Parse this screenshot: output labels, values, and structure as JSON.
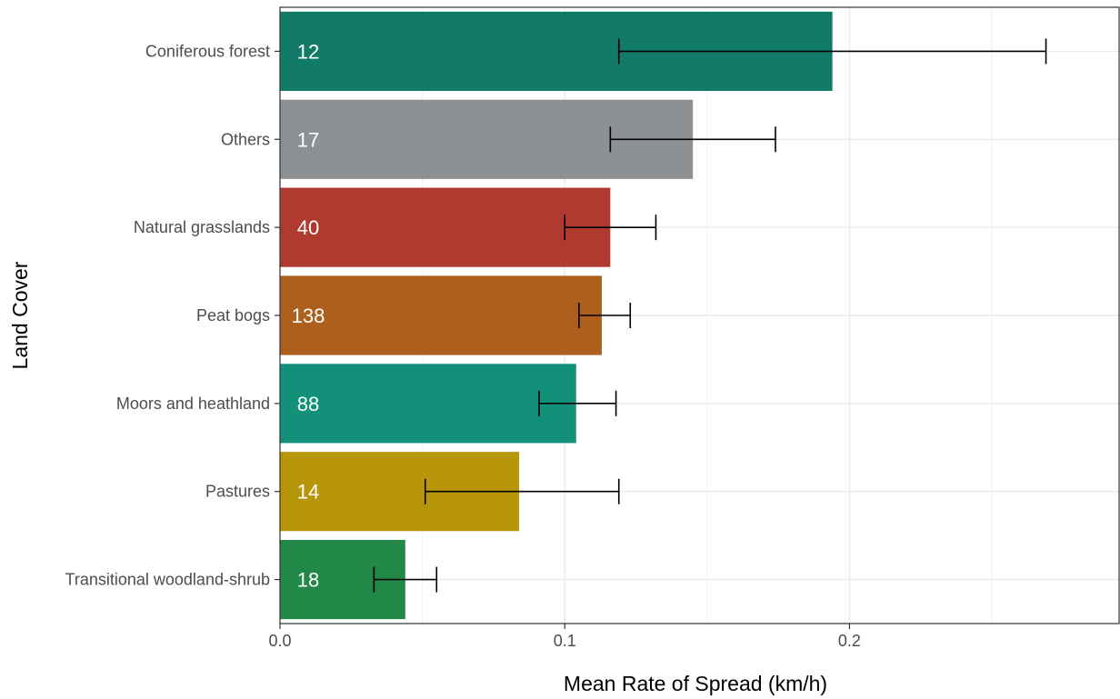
{
  "chart_data": {
    "type": "bar",
    "orientation": "horizontal",
    "xlabel": "Mean Rate of Spread (km/h)",
    "ylabel": "Land Cover",
    "xlim": [
      0,
      0.295
    ],
    "x_ticks": [
      "0.0",
      "0.1",
      "0.2"
    ],
    "x_tick_values": [
      0.0,
      0.1,
      0.2
    ],
    "grid": true,
    "categories": [
      "Coniferous forest",
      "Others",
      "Natural grasslands",
      "Peat bogs",
      "Moors and heathland",
      "Pastures",
      "Transitional woodland-shrub"
    ],
    "values": [
      0.194,
      0.145,
      0.116,
      0.113,
      0.104,
      0.084,
      0.044
    ],
    "error_low": [
      0.119,
      0.116,
      0.1,
      0.105,
      0.091,
      0.051,
      0.033
    ],
    "error_high": [
      0.269,
      0.174,
      0.132,
      0.123,
      0.118,
      0.119,
      0.055
    ],
    "counts": [
      "12",
      "17",
      "40",
      "138",
      "88",
      "14",
      "18"
    ],
    "colors": [
      "#127b67",
      "#8e9194",
      "#b03a30",
      "#ad5f1d",
      "#139079",
      "#b8960a",
      "#228847"
    ]
  }
}
